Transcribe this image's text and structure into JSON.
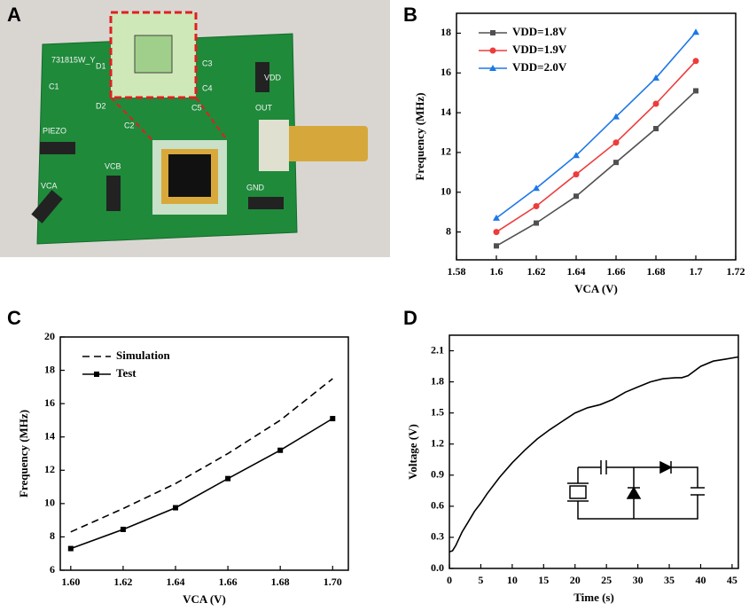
{
  "photo": {
    "panel_label": "A",
    "labels": [
      "731815W_Y",
      "D1",
      "D2",
      "C1",
      "C2",
      "C3",
      "C4",
      "C5",
      "PIEZO",
      "VCB",
      "VCA",
      "GND",
      "OUT",
      "VDD"
    ]
  },
  "chart_data": [
    {
      "type": "line",
      "panel_label": "B",
      "x_label": "VCA (V)",
      "y_label": "Frequency (MHz)",
      "x": [
        1.6,
        1.62,
        1.64,
        1.66,
        1.68,
        1.7
      ],
      "series": [
        {
          "name": "VDD=1.8V",
          "color": "#505050",
          "marker": "square",
          "values": [
            7.3,
            8.45,
            9.8,
            11.5,
            13.2,
            15.1
          ]
        },
        {
          "name": "VDD=1.9V",
          "color": "#ee3b3b",
          "marker": "circle",
          "values": [
            8.0,
            9.3,
            10.9,
            12.5,
            14.45,
            16.6
          ]
        },
        {
          "name": "VDD=2.0V",
          "color": "#1e78e6",
          "marker": "triangle",
          "values": [
            8.7,
            10.2,
            11.85,
            13.8,
            15.75,
            18.05
          ]
        }
      ],
      "xlim": [
        1.58,
        1.72
      ],
      "xticks": [
        1.58,
        1.6,
        1.62,
        1.64,
        1.66,
        1.68,
        1.7,
        1.72
      ],
      "ylim": [
        6.6,
        19
      ],
      "yticks": [
        8,
        10,
        12,
        14,
        16,
        18
      ],
      "legend": "upper left"
    },
    {
      "type": "line",
      "panel_label": "C",
      "x_label": "VCA (V)",
      "y_label": "Frequency (MHz)",
      "x": [
        1.6,
        1.62,
        1.64,
        1.66,
        1.68,
        1.7
      ],
      "series": [
        {
          "name": "Simulation",
          "color": "#000000",
          "dash": true,
          "values": [
            8.3,
            9.7,
            11.2,
            13.0,
            15.0,
            17.5
          ]
        },
        {
          "name": "Test",
          "color": "#000000",
          "marker": "square",
          "values": [
            7.3,
            8.45,
            9.75,
            11.5,
            13.2,
            15.1
          ]
        }
      ],
      "xlim": [
        1.596,
        1.706
      ],
      "xticks": [
        {
          "value": 1.6,
          "label": "1.60"
        },
        1.62,
        1.64,
        1.66,
        1.68,
        {
          "value": 1.7,
          "label": "1.70"
        }
      ],
      "ylim": [
        6,
        20
      ],
      "yticks": [
        6,
        8,
        10,
        12,
        14,
        16,
        18,
        20
      ],
      "legend": "upper left"
    },
    {
      "type": "line",
      "panel_label": "D",
      "x_label": "Time (s)",
      "y_label": "Voltage (V)",
      "x": [
        0,
        0.5,
        1,
        2,
        3,
        4,
        5,
        6,
        8,
        10,
        12,
        14,
        16,
        18,
        20,
        22,
        24,
        26,
        28,
        30,
        32,
        34,
        36,
        37,
        38,
        40,
        42,
        44,
        46
      ],
      "series": [
        {
          "color": "#000000",
          "values": [
            0.16,
            0.17,
            0.22,
            0.35,
            0.45,
            0.55,
            0.63,
            0.72,
            0.88,
            1.02,
            1.14,
            1.25,
            1.34,
            1.42,
            1.5,
            1.55,
            1.58,
            1.63,
            1.7,
            1.75,
            1.8,
            1.83,
            1.84,
            1.84,
            1.86,
            1.95,
            2.0,
            2.02,
            2.04
          ]
        }
      ],
      "xlim": [
        0,
        46
      ],
      "xticks": [
        0,
        5,
        10,
        15,
        20,
        25,
        30,
        35,
        40,
        45
      ],
      "ylim": [
        0,
        2.25
      ],
      "yticks": [
        {
          "value": 0,
          "label": "0.0"
        },
        0.3,
        0.6,
        0.9,
        1.2,
        1.5,
        1.8,
        2.1
      ]
    }
  ]
}
